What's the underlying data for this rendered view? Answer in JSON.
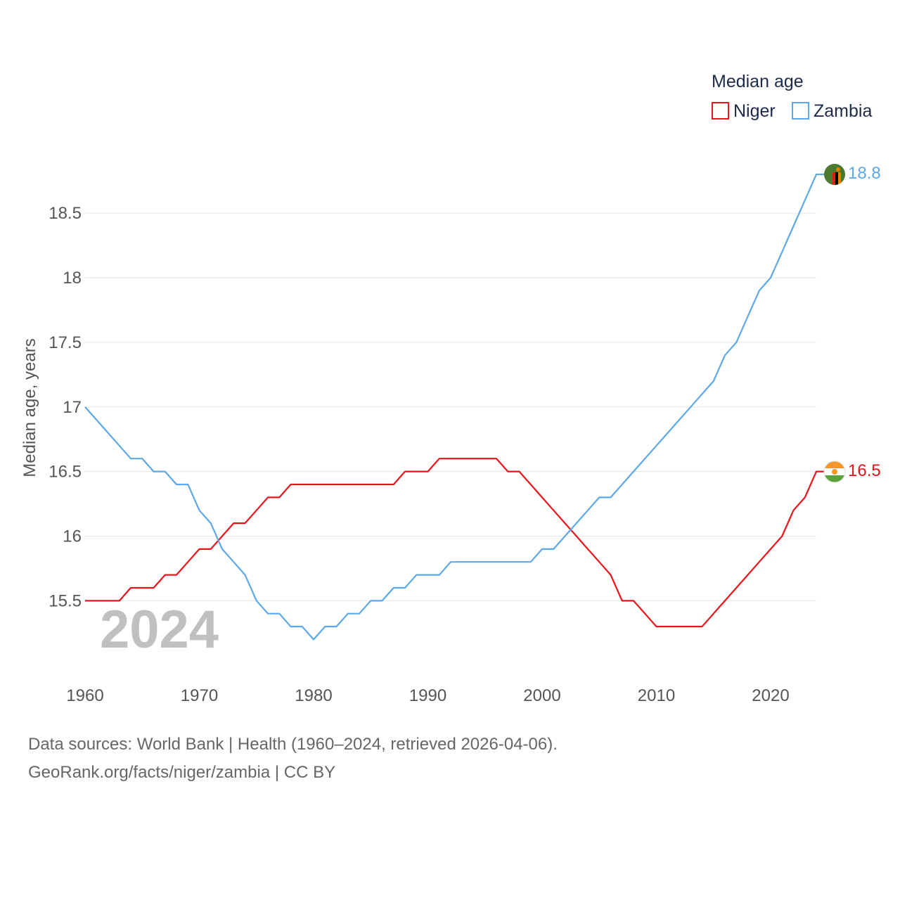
{
  "chart_data": {
    "type": "line",
    "legend_title": "Median age",
    "ylabel": "Median age, years",
    "xlabel": "",
    "year_label": "2024",
    "ylim": [
      14.9,
      19.0
    ],
    "xlim": [
      1960,
      2024
    ],
    "y_ticks": [
      15.5,
      16,
      16.5,
      17,
      17.5,
      18,
      18.5
    ],
    "y_tick_labels": [
      "15.5",
      "16",
      "16.5",
      "17",
      "17.5",
      "18",
      "18.5"
    ],
    "x_ticks": [
      1960,
      1970,
      1980,
      1990,
      2000,
      2010,
      2020
    ],
    "x_tick_labels": [
      "1960",
      "1970",
      "1980",
      "1990",
      "2000",
      "2010",
      "2020"
    ],
    "x": [
      1960,
      1961,
      1962,
      1963,
      1964,
      1965,
      1966,
      1967,
      1968,
      1969,
      1970,
      1971,
      1972,
      1973,
      1974,
      1975,
      1976,
      1977,
      1978,
      1979,
      1980,
      1981,
      1982,
      1983,
      1984,
      1985,
      1986,
      1987,
      1988,
      1989,
      1990,
      1991,
      1992,
      1993,
      1994,
      1995,
      1996,
      1997,
      1998,
      1999,
      2000,
      2001,
      2002,
      2003,
      2004,
      2005,
      2006,
      2007,
      2008,
      2009,
      2010,
      2011,
      2012,
      2013,
      2014,
      2015,
      2016,
      2017,
      2018,
      2019,
      2020,
      2021,
      2022,
      2023,
      2024
    ],
    "series": [
      {
        "name": "Niger",
        "color": "#e8141a",
        "end_label": "16.5",
        "values": [
          15.5,
          15.5,
          15.5,
          15.5,
          15.6,
          15.6,
          15.6,
          15.7,
          15.7,
          15.8,
          15.9,
          15.9,
          16.0,
          16.1,
          16.1,
          16.2,
          16.3,
          16.3,
          16.4,
          16.4,
          16.4,
          16.4,
          16.4,
          16.4,
          16.4,
          16.4,
          16.4,
          16.4,
          16.5,
          16.5,
          16.5,
          16.6,
          16.6,
          16.6,
          16.6,
          16.6,
          16.6,
          16.5,
          16.5,
          16.4,
          16.3,
          16.2,
          16.1,
          16.0,
          15.9,
          15.8,
          15.7,
          15.5,
          15.5,
          15.4,
          15.3,
          15.3,
          15.3,
          15.3,
          15.3,
          15.4,
          15.5,
          15.6,
          15.7,
          15.8,
          15.9,
          16.0,
          16.2,
          16.3,
          16.5
        ]
      },
      {
        "name": "Zambia",
        "color": "#5ca8e8",
        "end_label": "18.8",
        "values": [
          17.0,
          16.9,
          16.8,
          16.7,
          16.6,
          16.6,
          16.5,
          16.5,
          16.4,
          16.4,
          16.2,
          16.1,
          15.9,
          15.8,
          15.7,
          15.5,
          15.4,
          15.4,
          15.3,
          15.3,
          15.2,
          15.3,
          15.3,
          15.4,
          15.4,
          15.5,
          15.5,
          15.6,
          15.6,
          15.7,
          15.7,
          15.7,
          15.8,
          15.8,
          15.8,
          15.8,
          15.8,
          15.8,
          15.8,
          15.8,
          15.9,
          15.9,
          16.0,
          16.1,
          16.2,
          16.3,
          16.3,
          16.4,
          16.5,
          16.6,
          16.7,
          16.8,
          16.9,
          17.0,
          17.1,
          17.2,
          17.4,
          17.5,
          17.7,
          17.9,
          18.0,
          18.2,
          18.4,
          18.6,
          18.8
        ]
      }
    ]
  },
  "footer": {
    "source_line": "Data sources: World Bank | Health (1960–2024, retrieved 2026-04-06).",
    "credit_line": "GeoRank.org/facts/niger/zambia | CC BY"
  },
  "flags": {
    "niger": "niger-flag-icon",
    "zambia": "zambia-flag-icon"
  }
}
